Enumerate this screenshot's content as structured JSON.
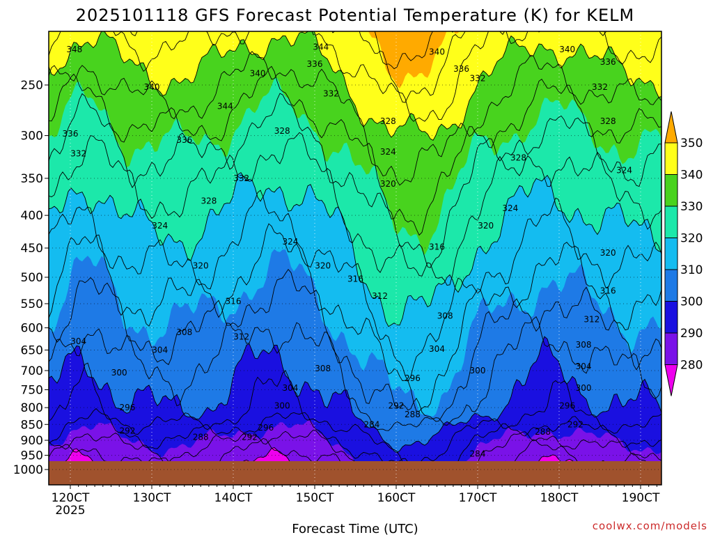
{
  "title": "2025101118 GFS Forecast Potential Temperature (K) for KELM",
  "credit": "coolwx.com/models",
  "chart_data": {
    "type": "contour",
    "title": "2025101118 GFS Forecast Potential Temperature (K) for KELM",
    "xlabel": "Forecast Time (UTC)",
    "ylabel": "",
    "y_scale": "log-pressure",
    "ylim": [
      1000,
      200
    ],
    "y_ticks": [
      "250",
      "300",
      "350",
      "400",
      "450",
      "500",
      "550",
      "600",
      "650",
      "700",
      "750",
      "800",
      "850",
      "900",
      "950",
      "1000"
    ],
    "x_ticks": [
      "120CT",
      "130CT",
      "140CT",
      "150CT",
      "160CT",
      "170CT",
      "180CT",
      "190CT"
    ],
    "x_subtick": "2025",
    "grid": true,
    "colorbar": {
      "labels": [
        "280",
        "290",
        "300",
        "310",
        "320",
        "330",
        "340",
        "350"
      ],
      "colors": [
        "#ee00ee",
        "#7a12e8",
        "#1a10e0",
        "#1e7ae6",
        "#14bcf0",
        "#1ce8aa",
        "#48d31e",
        "#ffff1a",
        "#ffaa00"
      ]
    },
    "contour_labels": [
      {
        "value": "348",
        "at": [
          "120CT+12h",
          220
        ]
      },
      {
        "value": "344",
        "at": [
          "150CT+18h",
          218
        ]
      },
      {
        "value": "340",
        "at": [
          "165CT",
          222
        ]
      },
      {
        "value": "340",
        "at": [
          "181CT",
          220
        ]
      },
      {
        "value": "336",
        "at": [
          "186CT",
          230
        ]
      },
      {
        "value": "336",
        "at": [
          "150CT",
          232
        ]
      },
      {
        "value": "336",
        "at": [
          "168CT",
          236
        ]
      },
      {
        "value": "332",
        "at": [
          "170CT",
          244
        ]
      },
      {
        "value": "340",
        "at": [
          "130CT",
          252
        ]
      },
      {
        "value": "340",
        "at": [
          "143CT",
          240
        ]
      },
      {
        "value": "332",
        "at": [
          "152CT",
          258
        ]
      },
      {
        "value": "332",
        "at": [
          "185CT",
          252
        ]
      },
      {
        "value": "344",
        "at": [
          "139CT",
          270
        ]
      },
      {
        "value": "336",
        "at": [
          "120CT",
          298
        ]
      },
      {
        "value": "336",
        "at": [
          "134CT",
          305
        ]
      },
      {
        "value": "332",
        "at": [
          "121CT",
          320
        ]
      },
      {
        "value": "328",
        "at": [
          "146CT",
          295
        ]
      },
      {
        "value": "328",
        "at": [
          "159CT",
          285
        ]
      },
      {
        "value": "328",
        "at": [
          "186CT",
          285
        ]
      },
      {
        "value": "324",
        "at": [
          "159CT",
          318
        ]
      },
      {
        "value": "328",
        "at": [
          "175CT",
          325
        ]
      },
      {
        "value": "332",
        "at": [
          "141CT",
          350
        ]
      },
      {
        "value": "324",
        "at": [
          "188CT",
          340
        ]
      },
      {
        "value": "320",
        "at": [
          "159CT",
          357
        ]
      },
      {
        "value": "328",
        "at": [
          "137CT",
          380
        ]
      },
      {
        "value": "324",
        "at": [
          "174CT",
          390
        ]
      },
      {
        "value": "324",
        "at": [
          "131CT",
          415
        ]
      },
      {
        "value": "320",
        "at": [
          "171CT",
          415
        ]
      },
      {
        "value": "324",
        "at": [
          "147CT",
          440
        ]
      },
      {
        "value": "316",
        "at": [
          "165CT",
          448
        ]
      },
      {
        "value": "320",
        "at": [
          "186CT",
          458
        ]
      },
      {
        "value": "320",
        "at": [
          "136CT",
          480
        ]
      },
      {
        "value": "320",
        "at": [
          "151CT",
          480
        ]
      },
      {
        "value": "316",
        "at": [
          "155CT",
          503
        ]
      },
      {
        "value": "316",
        "at": [
          "186CT",
          525
        ]
      },
      {
        "value": "312",
        "at": [
          "158CT",
          535
        ]
      },
      {
        "value": "316",
        "at": [
          "140CT",
          545
        ]
      },
      {
        "value": "308",
        "at": [
          "166CT",
          575
        ]
      },
      {
        "value": "312",
        "at": [
          "184CT",
          582
        ]
      },
      {
        "value": "308",
        "at": [
          "134CT",
          610
        ]
      },
      {
        "value": "312",
        "at": [
          "141CT",
          620
        ]
      },
      {
        "value": "308",
        "at": [
          "183CT",
          638
        ]
      },
      {
        "value": "304",
        "at": [
          "121CT",
          630
        ]
      },
      {
        "value": "304",
        "at": [
          "131CT",
          650
        ]
      },
      {
        "value": "304",
        "at": [
          "165CT",
          648
        ]
      },
      {
        "value": "300",
        "at": [
          "170CT",
          700
        ]
      },
      {
        "value": "308",
        "at": [
          "151CT",
          695
        ]
      },
      {
        "value": "304",
        "at": [
          "183CT",
          690
        ]
      },
      {
        "value": "300",
        "at": [
          "126CT",
          705
        ]
      },
      {
        "value": "296",
        "at": [
          "162CT",
          720
        ]
      },
      {
        "value": "304",
        "at": [
          "147CT",
          745
        ]
      },
      {
        "value": "300",
        "at": [
          "183CT",
          745
        ]
      },
      {
        "value": "300",
        "at": [
          "146CT",
          795
        ]
      },
      {
        "value": "292",
        "at": [
          "160CT",
          795
        ]
      },
      {
        "value": "296",
        "at": [
          "127CT",
          800
        ]
      },
      {
        "value": "296",
        "at": [
          "181CT",
          795
        ]
      },
      {
        "value": "288",
        "at": [
          "162CT",
          820
        ]
      },
      {
        "value": "284",
        "at": [
          "157CT",
          850
        ]
      },
      {
        "value": "296",
        "at": [
          "144CT",
          860
        ]
      },
      {
        "value": "292",
        "at": [
          "182CT",
          850
        ]
      },
      {
        "value": "292",
        "at": [
          "127CT",
          870
        ]
      },
      {
        "value": "288",
        "at": [
          "178CT",
          873
        ]
      },
      {
        "value": "288",
        "at": [
          "136CT",
          890
        ]
      },
      {
        "value": "292",
        "at": [
          "142CT",
          890
        ]
      },
      {
        "value": "284",
        "at": [
          "170CT",
          945
        ]
      }
    ],
    "note_surface": "below-ground shaded brown"
  }
}
